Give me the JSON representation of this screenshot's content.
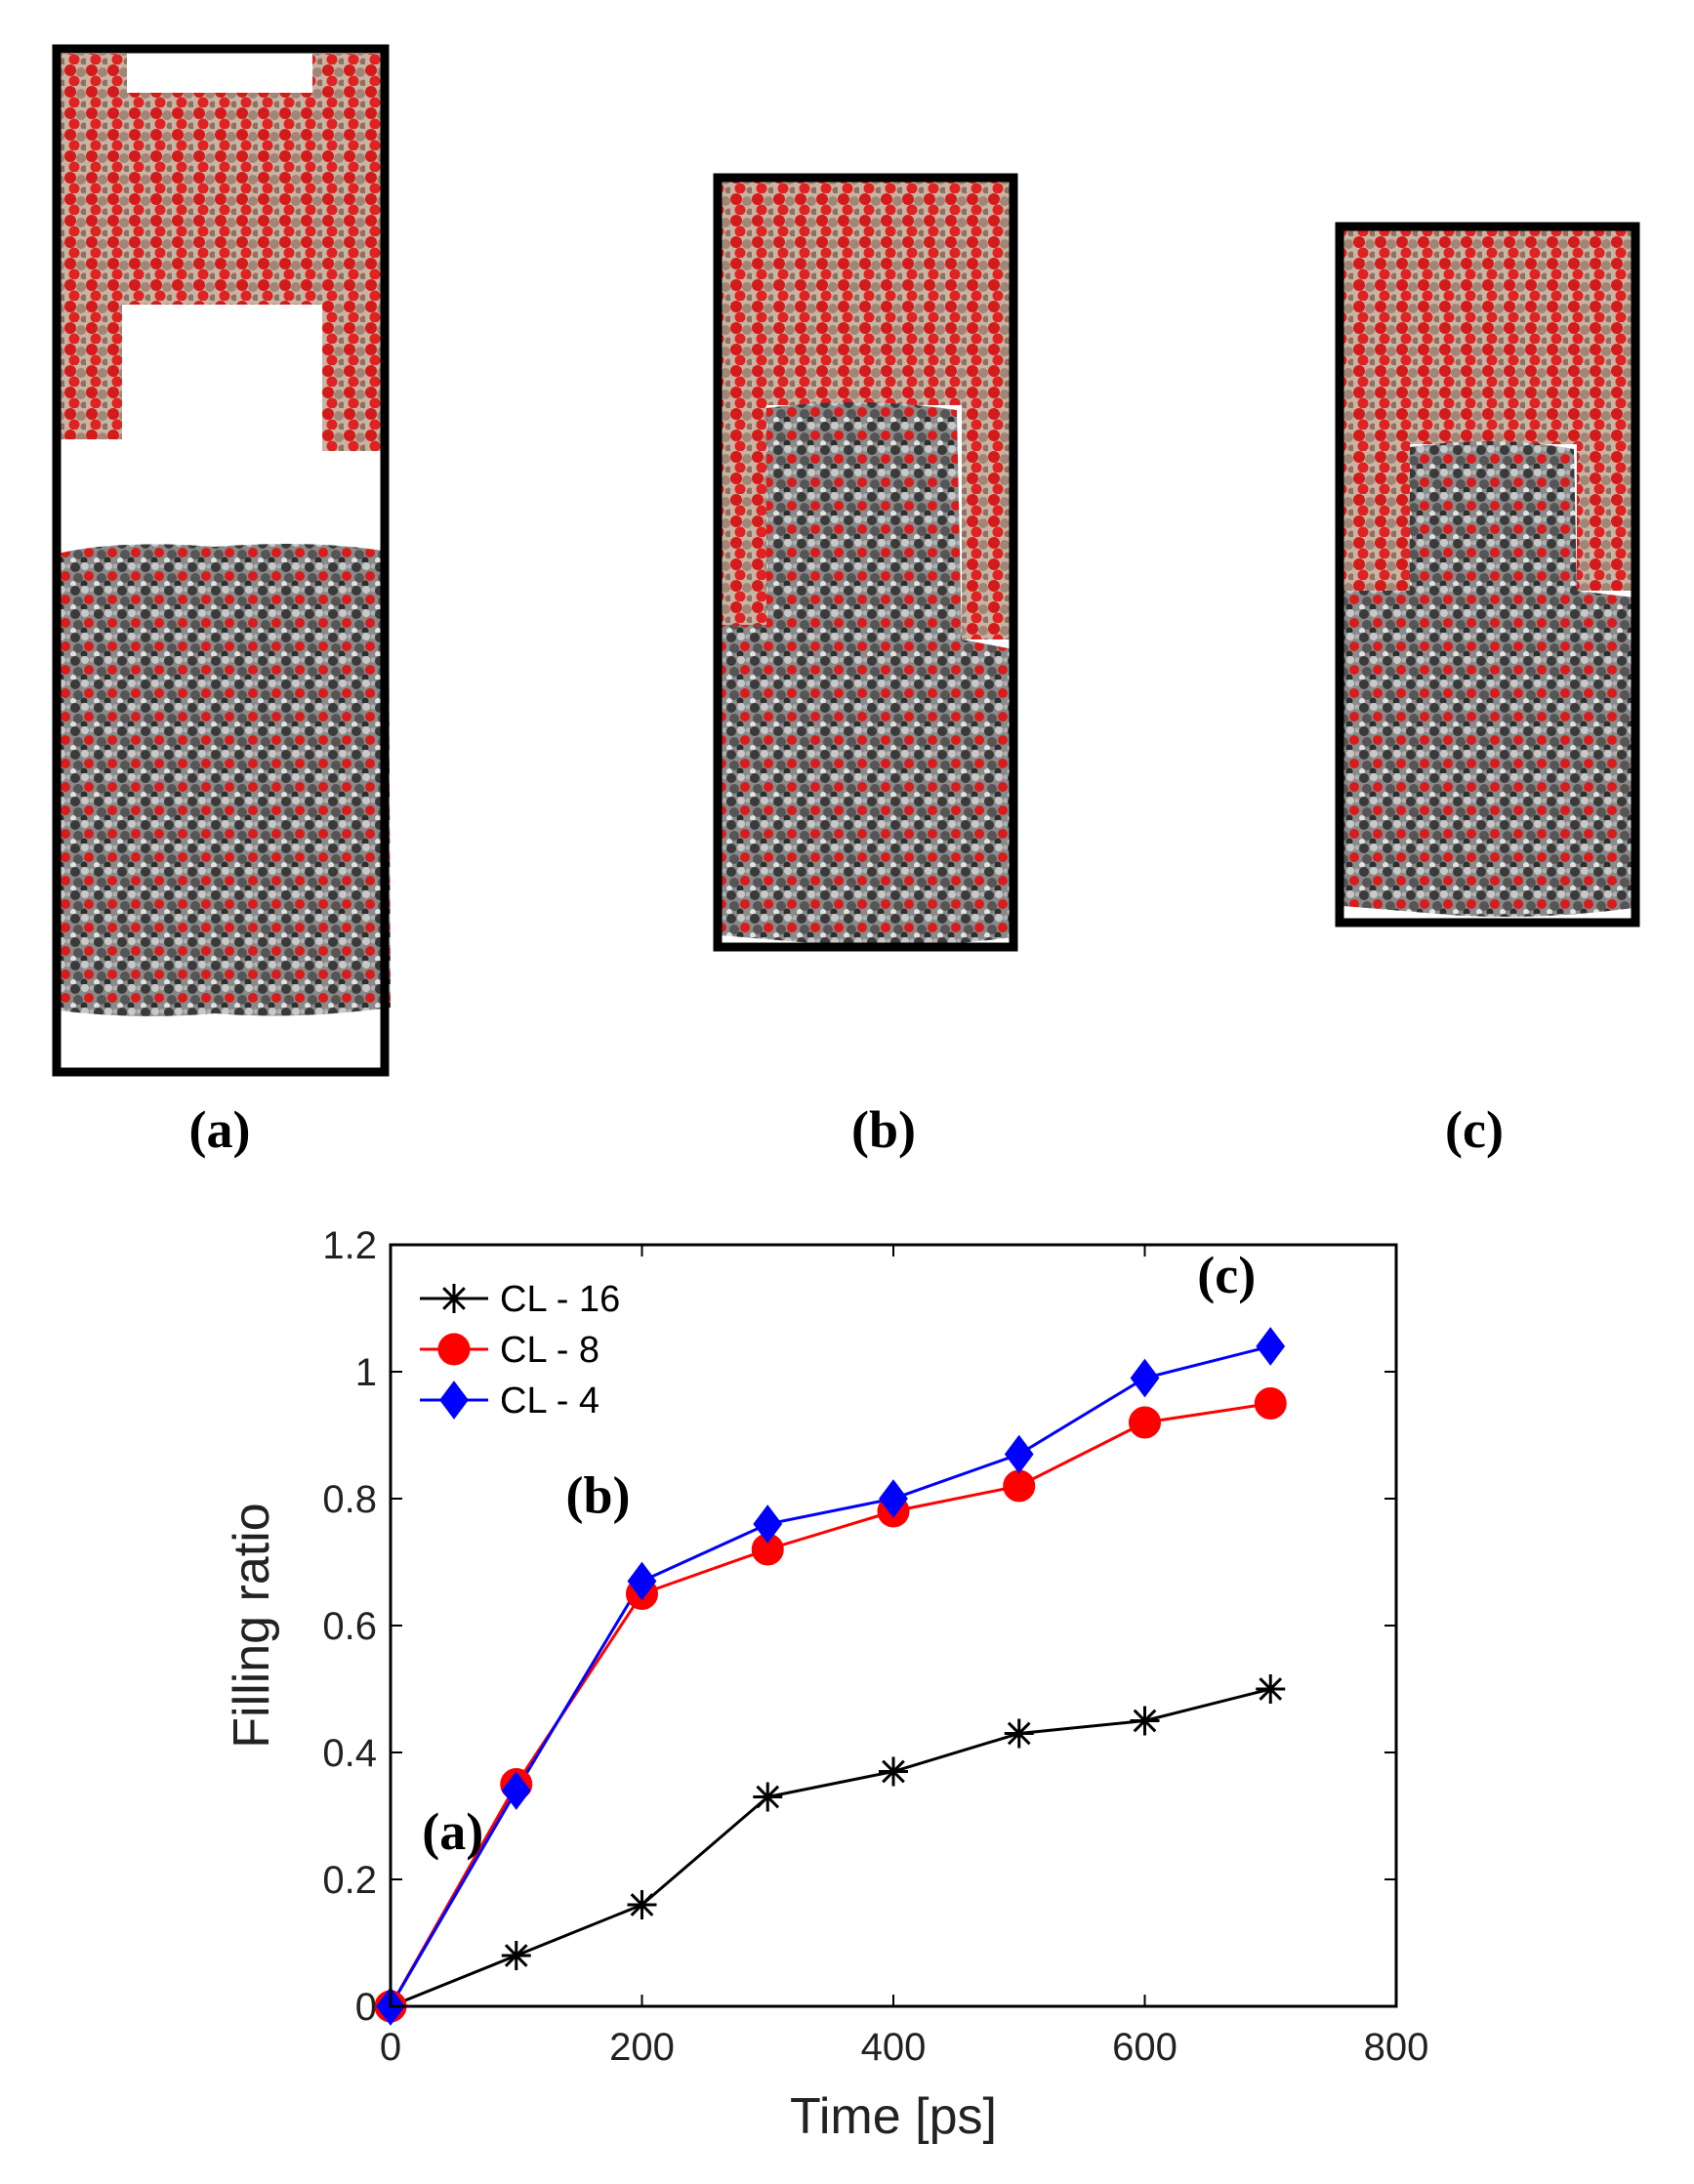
{
  "snapshots": [
    {
      "label": "(a)"
    },
    {
      "label": "(b)"
    },
    {
      "label": "(c)"
    }
  ],
  "colors": {
    "surface_red": "#d41a1a",
    "surface_tan": "#b49a86",
    "liquid_dark": "#3a3a3a",
    "liquid_light": "#b9b9b9",
    "liquid_red": "#d81c1c"
  },
  "chart_data": {
    "type": "line",
    "title": "",
    "xlabel": "Time [ps]",
    "ylabel": "Filling ratio",
    "xlim": [
      0,
      800
    ],
    "ylim": [
      0,
      1.2
    ],
    "xticks": [
      0,
      200,
      400,
      600,
      800
    ],
    "yticks": [
      0,
      0.2,
      0.4,
      0.6,
      0.8,
      1,
      1.2
    ],
    "xtick_labels": [
      "0",
      "200",
      "400",
      "600",
      "800"
    ],
    "ytick_labels": [
      "0",
      "0.2",
      "0.4",
      "0.6",
      "0.8",
      "1",
      "1.2"
    ],
    "legend_position": "top-left",
    "series": [
      {
        "name": "CL - 16",
        "color": "#000000",
        "marker": "star",
        "x": [
          0,
          100,
          200,
          300,
          400,
          500,
          600,
          700
        ],
        "y": [
          0,
          0.08,
          0.16,
          0.33,
          0.37,
          0.43,
          0.45,
          0.5
        ]
      },
      {
        "name": "CL - 8",
        "color": "#ff0000",
        "marker": "circle",
        "x": [
          0,
          100,
          200,
          300,
          400,
          500,
          600,
          700
        ],
        "y": [
          0,
          0.35,
          0.65,
          0.72,
          0.78,
          0.82,
          0.92,
          0.95
        ]
      },
      {
        "name": "CL - 4",
        "color": "#0000ff",
        "marker": "diamond",
        "x": [
          0,
          100,
          200,
          300,
          400,
          500,
          600,
          700
        ],
        "y": [
          0,
          0.34,
          0.67,
          0.76,
          0.8,
          0.87,
          0.99,
          1.04
        ]
      }
    ],
    "annotations": [
      {
        "text": "(a)",
        "x": 100,
        "y": 0.34
      },
      {
        "text": "(b)",
        "x": 200,
        "y": 0.67
      },
      {
        "text": "(c)",
        "x": 700,
        "y": 1.04
      }
    ]
  }
}
